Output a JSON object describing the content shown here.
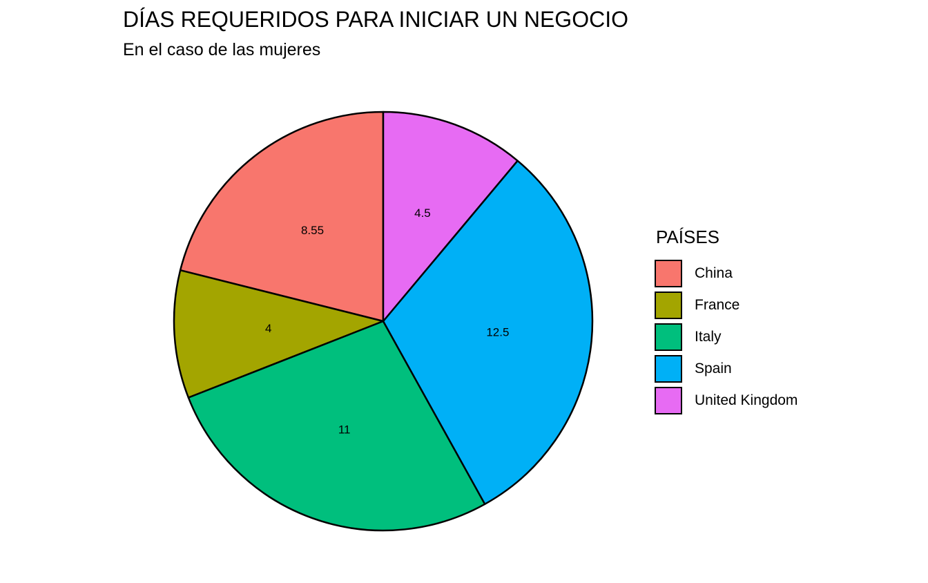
{
  "chart_data": {
    "type": "pie",
    "title": "DÍAS REQUERIDOS PARA INICIAR UN NEGOCIO",
    "subtitle": "En el caso de las mujeres",
    "legend_title": "PAÍSES",
    "legend_position": "right",
    "slices": [
      {
        "name": "China",
        "value": 8.55,
        "label": "8.55",
        "color": "#F8766D"
      },
      {
        "name": "France",
        "value": 4,
        "label": "4",
        "color": "#A3A500"
      },
      {
        "name": "Italy",
        "value": 11,
        "label": "11",
        "color": "#00BF7D"
      },
      {
        "name": "Spain",
        "value": 12.5,
        "label": "12.5",
        "color": "#00B0F6"
      },
      {
        "name": "United Kingdom",
        "value": 4.5,
        "label": "4.5",
        "color": "#E76BF3"
      }
    ]
  }
}
